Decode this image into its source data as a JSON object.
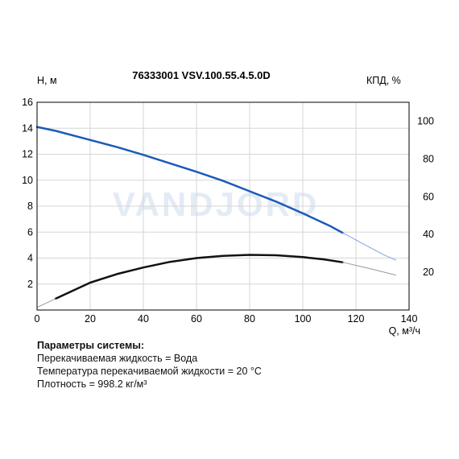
{
  "chart_data": {
    "type": "line",
    "title": "76333001 VSV.100.55.4.5.0D",
    "xlabel": "Q, м³/ч",
    "ylabel_left": "H, м",
    "ylabel_right": "КПД, %",
    "xlim": [
      0,
      140
    ],
    "ylim_left": [
      0,
      16
    ],
    "ylim_right": [
      0,
      110
    ],
    "x_ticks": [
      0,
      20,
      40,
      60,
      80,
      100,
      120,
      140
    ],
    "y_left_ticks": [
      2,
      4,
      6,
      8,
      10,
      12,
      14,
      16
    ],
    "y_right_ticks": [
      20,
      40,
      60,
      80,
      100
    ],
    "grid": true,
    "watermark": "VANDJORD",
    "series": [
      {
        "axis": "left",
        "color": "#1c5bb8",
        "x": [
          0,
          7,
          20,
          30,
          40,
          50,
          60,
          70,
          80,
          90,
          100,
          110,
          115
        ],
        "y": [
          14.1,
          13.8,
          13.1,
          12.55,
          11.95,
          11.3,
          10.65,
          9.95,
          9.15,
          8.35,
          7.45,
          6.5,
          5.95
        ]
      },
      {
        "axis": "left",
        "color": "#7aa6e0",
        "x": [
          115,
          120,
          125,
          130,
          135
        ],
        "y": [
          5.95,
          5.4,
          4.85,
          4.3,
          3.85
        ]
      },
      {
        "axis": "right",
        "color": "#111111",
        "x": [
          7,
          20,
          30,
          40,
          50,
          60,
          70,
          80,
          90,
          100,
          108,
          115
        ],
        "y": [
          6,
          14.5,
          19,
          22.5,
          25.5,
          27.5,
          28.7,
          29.2,
          29,
          28,
          26.8,
          25.3
        ]
      },
      {
        "axis": "right",
        "color": "#999999",
        "x": [
          0,
          7
        ],
        "y": [
          1.4,
          6
        ]
      },
      {
        "axis": "right",
        "color": "#999999",
        "x": [
          115,
          125,
          135
        ],
        "y": [
          25.3,
          22,
          18.5
        ]
      }
    ]
  },
  "params": {
    "header": "Параметры системы:",
    "lines": [
      "Перекачиваемая жидкость = Вода",
      "Температура перекачиваемой жидкости = 20 °C",
      "Плотность = 998.2 кг/м³"
    ]
  }
}
